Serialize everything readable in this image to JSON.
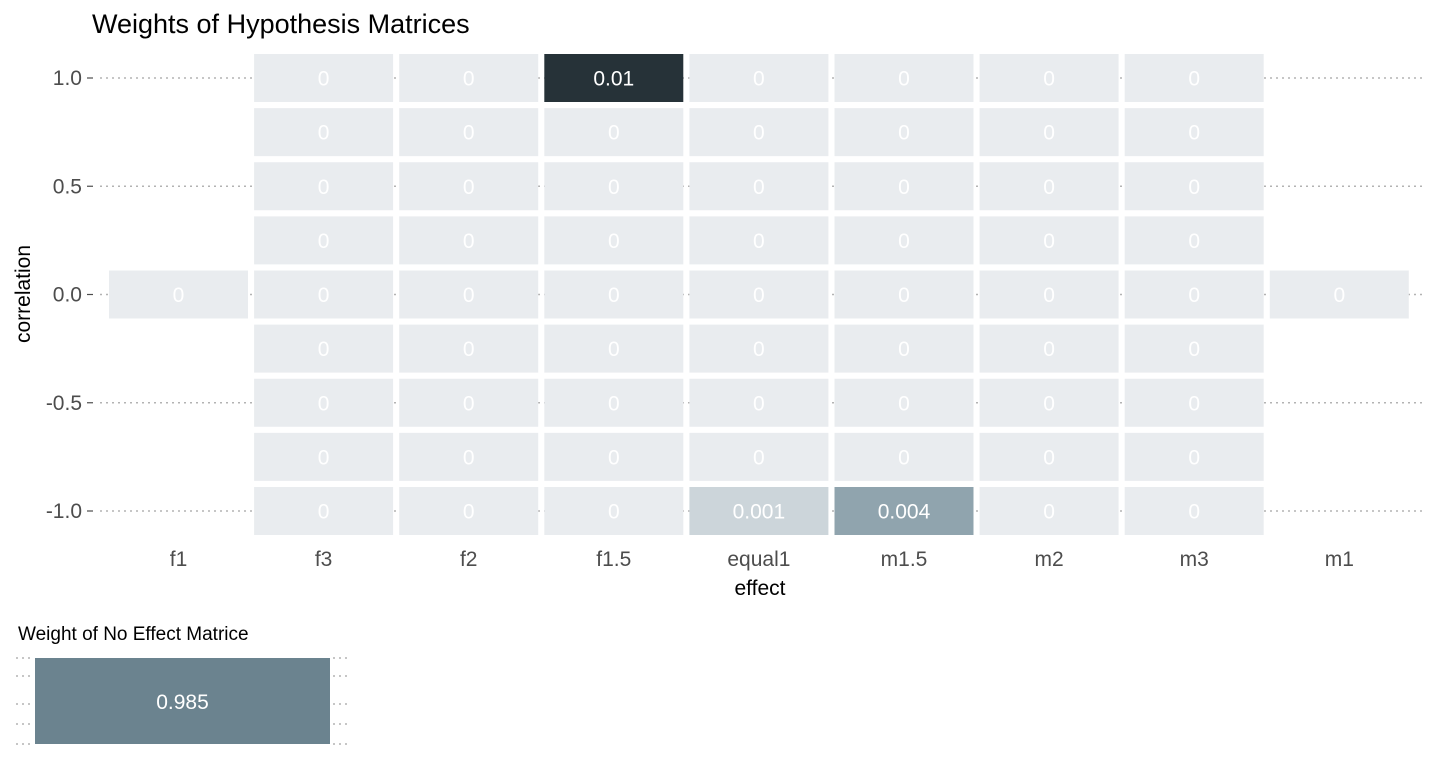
{
  "chart_data": [
    {
      "type": "heatmap",
      "title": "Weights of Hypothesis Matrices",
      "xlabel": "effect",
      "ylabel": "correlation",
      "x_categories": [
        "f1",
        "f3",
        "f2",
        "f1.5",
        "equal1",
        "m1.5",
        "m2",
        "m3",
        "m1"
      ],
      "y_levels": [
        1.0,
        0.75,
        0.5,
        0.25,
        0.0,
        -0.25,
        -0.5,
        -0.75,
        -1.0
      ],
      "y_tick_labels": [
        "1.0",
        "0.5",
        "0.0",
        "-0.5",
        "-1.0"
      ],
      "y_tick_values": [
        1.0,
        0.5,
        0.0,
        -0.5,
        -1.0
      ],
      "ylim": [
        -1.0,
        1.0
      ],
      "grid": "dotted major gridlines",
      "legend": "none",
      "colors": {
        "low": "#e9ecef",
        "high": "#263238"
      },
      "cells": [
        {
          "x": "f1",
          "y": 0.0,
          "value": 0,
          "label": "0"
        },
        {
          "x": "m1",
          "y": 0.0,
          "value": 0,
          "label": "0"
        },
        {
          "x": "f3",
          "y": 1.0,
          "value": 0,
          "label": "0"
        },
        {
          "x": "f2",
          "y": 1.0,
          "value": 0,
          "label": "0"
        },
        {
          "x": "f1.5",
          "y": 1.0,
          "value": 0.01,
          "label": "0.01"
        },
        {
          "x": "equal1",
          "y": 1.0,
          "value": 0,
          "label": "0"
        },
        {
          "x": "m1.5",
          "y": 1.0,
          "value": 0,
          "label": "0"
        },
        {
          "x": "m2",
          "y": 1.0,
          "value": 0,
          "label": "0"
        },
        {
          "x": "m3",
          "y": 1.0,
          "value": 0,
          "label": "0"
        },
        {
          "x": "f3",
          "y": 0.75,
          "value": 0,
          "label": "0"
        },
        {
          "x": "f2",
          "y": 0.75,
          "value": 0,
          "label": "0"
        },
        {
          "x": "f1.5",
          "y": 0.75,
          "value": 0,
          "label": "0"
        },
        {
          "x": "equal1",
          "y": 0.75,
          "value": 0,
          "label": "0"
        },
        {
          "x": "m1.5",
          "y": 0.75,
          "value": 0,
          "label": "0"
        },
        {
          "x": "m2",
          "y": 0.75,
          "value": 0,
          "label": "0"
        },
        {
          "x": "m3",
          "y": 0.75,
          "value": 0,
          "label": "0"
        },
        {
          "x": "f3",
          "y": 0.5,
          "value": 0,
          "label": "0"
        },
        {
          "x": "f2",
          "y": 0.5,
          "value": 0,
          "label": "0"
        },
        {
          "x": "f1.5",
          "y": 0.5,
          "value": 0,
          "label": "0"
        },
        {
          "x": "equal1",
          "y": 0.5,
          "value": 0,
          "label": "0"
        },
        {
          "x": "m1.5",
          "y": 0.5,
          "value": 0,
          "label": "0"
        },
        {
          "x": "m2",
          "y": 0.5,
          "value": 0,
          "label": "0"
        },
        {
          "x": "m3",
          "y": 0.5,
          "value": 0,
          "label": "0"
        },
        {
          "x": "f3",
          "y": 0.25,
          "value": 0,
          "label": "0"
        },
        {
          "x": "f2",
          "y": 0.25,
          "value": 0,
          "label": "0"
        },
        {
          "x": "f1.5",
          "y": 0.25,
          "value": 0,
          "label": "0"
        },
        {
          "x": "equal1",
          "y": 0.25,
          "value": 0,
          "label": "0"
        },
        {
          "x": "m1.5",
          "y": 0.25,
          "value": 0,
          "label": "0"
        },
        {
          "x": "m2",
          "y": 0.25,
          "value": 0,
          "label": "0"
        },
        {
          "x": "m3",
          "y": 0.25,
          "value": 0,
          "label": "0"
        },
        {
          "x": "f3",
          "y": 0.0,
          "value": 0,
          "label": "0"
        },
        {
          "x": "f2",
          "y": 0.0,
          "value": 0,
          "label": "0"
        },
        {
          "x": "f1.5",
          "y": 0.0,
          "value": 0,
          "label": "0"
        },
        {
          "x": "equal1",
          "y": 0.0,
          "value": 0,
          "label": "0"
        },
        {
          "x": "m1.5",
          "y": 0.0,
          "value": 0,
          "label": "0"
        },
        {
          "x": "m2",
          "y": 0.0,
          "value": 0,
          "label": "0"
        },
        {
          "x": "m3",
          "y": 0.0,
          "value": 0,
          "label": "0"
        },
        {
          "x": "f3",
          "y": -0.25,
          "value": 0,
          "label": "0"
        },
        {
          "x": "f2",
          "y": -0.25,
          "value": 0,
          "label": "0"
        },
        {
          "x": "f1.5",
          "y": -0.25,
          "value": 0,
          "label": "0"
        },
        {
          "x": "equal1",
          "y": -0.25,
          "value": 0,
          "label": "0"
        },
        {
          "x": "m1.5",
          "y": -0.25,
          "value": 0,
          "label": "0"
        },
        {
          "x": "m2",
          "y": -0.25,
          "value": 0,
          "label": "0"
        },
        {
          "x": "m3",
          "y": -0.25,
          "value": 0,
          "label": "0"
        },
        {
          "x": "f3",
          "y": -0.5,
          "value": 0,
          "label": "0"
        },
        {
          "x": "f2",
          "y": -0.5,
          "value": 0,
          "label": "0"
        },
        {
          "x": "f1.5",
          "y": -0.5,
          "value": 0,
          "label": "0"
        },
        {
          "x": "equal1",
          "y": -0.5,
          "value": 0,
          "label": "0"
        },
        {
          "x": "m1.5",
          "y": -0.5,
          "value": 0,
          "label": "0"
        },
        {
          "x": "m2",
          "y": -0.5,
          "value": 0,
          "label": "0"
        },
        {
          "x": "m3",
          "y": -0.5,
          "value": 0,
          "label": "0"
        },
        {
          "x": "f3",
          "y": -0.75,
          "value": 0,
          "label": "0"
        },
        {
          "x": "f2",
          "y": -0.75,
          "value": 0,
          "label": "0"
        },
        {
          "x": "f1.5",
          "y": -0.75,
          "value": 0,
          "label": "0"
        },
        {
          "x": "equal1",
          "y": -0.75,
          "value": 0,
          "label": "0"
        },
        {
          "x": "m1.5",
          "y": -0.75,
          "value": 0,
          "label": "0"
        },
        {
          "x": "m2",
          "y": -0.75,
          "value": 0,
          "label": "0"
        },
        {
          "x": "m3",
          "y": -0.75,
          "value": 0,
          "label": "0"
        },
        {
          "x": "f3",
          "y": -1.0,
          "value": 0,
          "label": "0"
        },
        {
          "x": "f2",
          "y": -1.0,
          "value": 0,
          "label": "0"
        },
        {
          "x": "f1.5",
          "y": -1.0,
          "value": 0,
          "label": "0"
        },
        {
          "x": "equal1",
          "y": -1.0,
          "value": 0.001,
          "label": "0.001"
        },
        {
          "x": "m1.5",
          "y": -1.0,
          "value": 0.004,
          "label": "0.004"
        },
        {
          "x": "m2",
          "y": -1.0,
          "value": 0,
          "label": "0"
        },
        {
          "x": "m3",
          "y": -1.0,
          "value": 0,
          "label": "0"
        }
      ],
      "cell_colors": {
        "0": "#e9ecef",
        "0.001": "#ccd5da",
        "0.004": "#90a4ae",
        "0.01": "#263238"
      },
      "label_colors": {
        "0": "#ffffff",
        "0.001": "#ffffff",
        "0.004": "#ffffff",
        "0.01": "#ffffff"
      }
    },
    {
      "type": "heatmap",
      "title": "Weight of No Effect Matrice",
      "cells": [
        {
          "value": 0.985,
          "label": "0.985"
        }
      ],
      "grid": "dotted",
      "legend": "none",
      "colors": {
        "cell": "#6b838f",
        "label": "#ffffff"
      }
    }
  ]
}
